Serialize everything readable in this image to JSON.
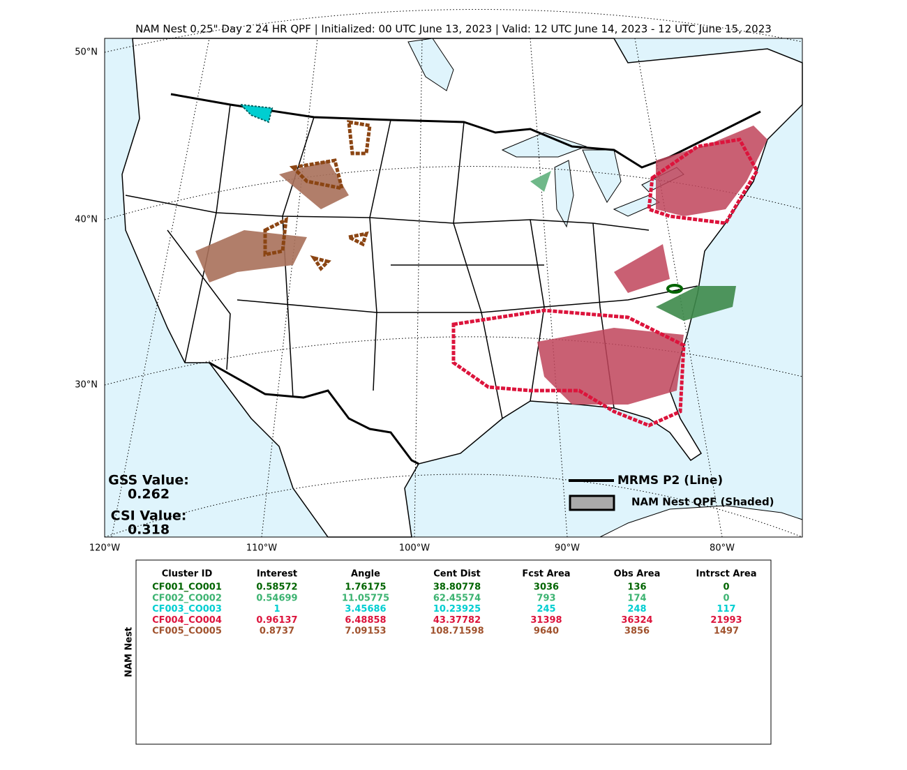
{
  "title": "NAM Nest 0.25\" Day 2 24 HR QPF | Initialized: 00 UTC June 13, 2023 | Valid: 12 UTC June 14, 2023 - 12 UTC June 15, 2023",
  "map": {
    "lat_labels": [
      "50°N",
      "40°N",
      "30°N"
    ],
    "lon_labels": [
      "120°W",
      "110°W",
      "100°W",
      "90°W",
      "80°W"
    ],
    "scores": [
      {
        "label": "GSS Value:",
        "value": "0.262"
      },
      {
        "label": "CSI Value:",
        "value": "0.318"
      }
    ],
    "legend": [
      "MRMS P2 (Line)",
      "NAM Nest QPF (Shaded)"
    ]
  },
  "table": {
    "side_label": "NAM Nest",
    "header": [
      "Cluster ID",
      "Interest",
      "Angle",
      "Cent Dist",
      "Fcst Area",
      "Obs Area",
      "Intrsct Area"
    ],
    "rows": [
      {
        "color": "#006400",
        "cells": [
          "CF001_CO001",
          "0.58572",
          "1.76175",
          "38.80778",
          "3036",
          "136",
          "0"
        ]
      },
      {
        "color": "#3cb371",
        "cells": [
          "CF002_CO002",
          "0.54699",
          "11.05775",
          "62.45574",
          "793",
          "174",
          "0"
        ]
      },
      {
        "color": "#00ced1",
        "cells": [
          "CF003_CO003",
          "1",
          "3.45686",
          "10.23925",
          "245",
          "248",
          "117"
        ]
      },
      {
        "color": "#dc143c",
        "cells": [
          "CF004_CO004",
          "0.96137",
          "6.48858",
          "43.37782",
          "31398",
          "36324",
          "21993"
        ]
      },
      {
        "color": "#a0522d",
        "cells": [
          "CF005_CO005",
          "0.8737",
          "7.09153",
          "108.71598",
          "9640",
          "3856",
          "1497"
        ]
      }
    ]
  }
}
